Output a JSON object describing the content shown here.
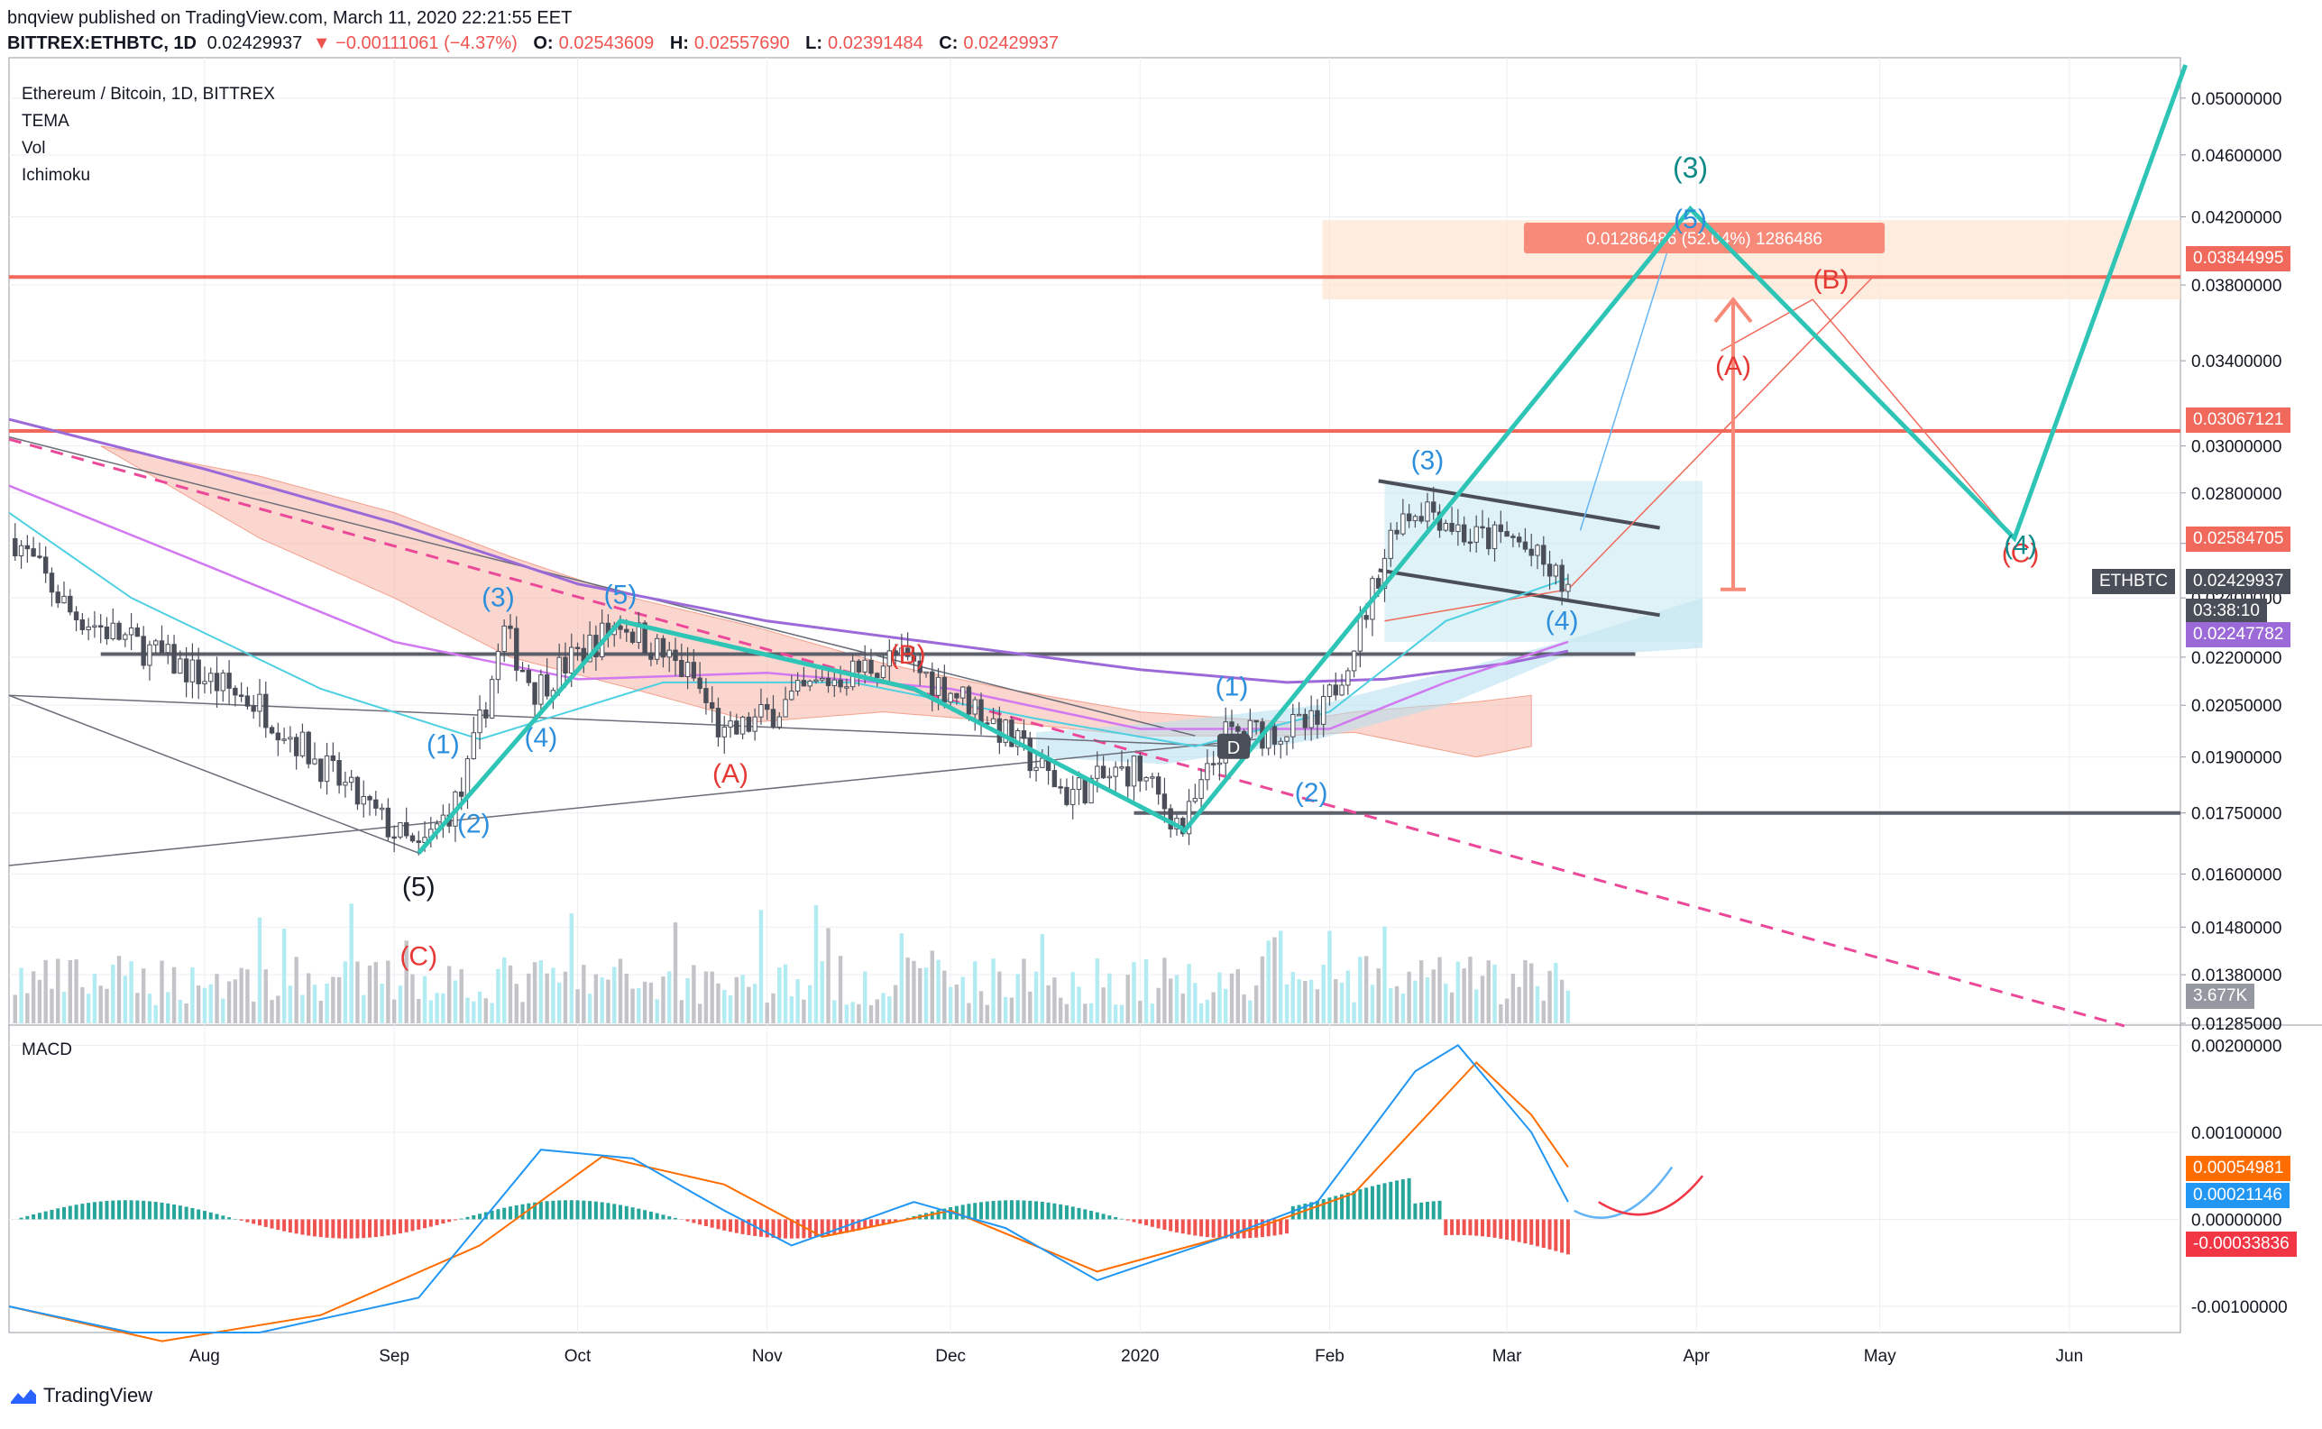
{
  "header": {
    "line1": "bnqview published on TradingView.com, March 11, 2020 22:21:55 EET",
    "symbol": "BITTREX:ETHBTC, 1D",
    "last": "0.02429937",
    "change": "−0.00111061 (−4.37%)",
    "o_label": "O:",
    "o_val": "0.02543609",
    "h_label": "H:",
    "h_val": "0.02557690",
    "l_label": "L:",
    "l_val": "0.02391484",
    "c_label": "C:",
    "c_val": "0.02429937"
  },
  "legend": {
    "title": "Ethereum / Bitcoin, 1D, BITTREX",
    "indicators": [
      "TEMA",
      "Vol",
      "Ichimoku"
    ],
    "macd": "MACD"
  },
  "footer": {
    "brand": "TradingView"
  },
  "colors": {
    "teal": "#2ec4b6",
    "red": "#f23645",
    "resistance": "#f0695a",
    "gray": "#5d606b",
    "cloud_red": "#f8b4a6",
    "cloud_blue": "#b2dfee",
    "macd_line": "#2196f3",
    "signal_line": "#ff6d00"
  },
  "chart_data": {
    "type": "candlestick",
    "title": "Ethereum / Bitcoin, 1D, BITTREX",
    "x_ticks": [
      "Aug",
      "Sep",
      "Oct",
      "Nov",
      "Dec",
      "2020",
      "Feb",
      "Mar",
      "Apr",
      "May",
      "Jun"
    ],
    "y_ticks": [
      "0.05000000",
      "0.04600000",
      "0.04200000",
      "0.03800000",
      "0.03400000",
      "0.03000000",
      "0.02800000",
      "0.02600000",
      "0.02400000",
      "0.02200000",
      "0.02050000",
      "0.01900000",
      "0.01750000",
      "0.01600000",
      "0.01480000",
      "0.01380000",
      "0.01285000"
    ],
    "scale": "log",
    "ylim": [
      0.01285,
      0.0525
    ],
    "price_tags": [
      {
        "value": "0.03844995",
        "color": "#f0695a"
      },
      {
        "value": "0.03067121",
        "color": "#f0695a"
      },
      {
        "value": "0.02584705",
        "color": "#f0695a"
      },
      {
        "value": "ETHBTC",
        "color": "#4a4e59"
      },
      {
        "value": "0.02429937",
        "color": "#4a4e59"
      },
      {
        "value": "03:38:10",
        "color": "#4a4e59"
      },
      {
        "value": "0.02247782",
        "color": "#9c6ad8"
      },
      {
        "value": "3.677K",
        "color": "#9598a1"
      }
    ],
    "resistance_levels": [
      0.03844995,
      0.03067121
    ],
    "support_levels": [
      0.0175,
      0.0221
    ],
    "measure_label": "0.01286486 (52.04%) 1286486",
    "projection_cyan": [
      [
        "2020-01-08",
        0.017
      ],
      [
        "2020-03-31",
        0.0425
      ],
      [
        "2020-05-23",
        0.0262
      ],
      [
        "2020-06-20",
        0.0525
      ]
    ],
    "wave_labels": {
      "blue": [
        "(1)",
        "(2)",
        "(3)",
        "(4)",
        "(5)",
        "(1)",
        "(2)",
        "(3)",
        "(4)",
        "(5)"
      ],
      "red": [
        "(A)",
        "(B)",
        "(C)",
        "(A)",
        "(B)",
        "(C)"
      ],
      "black": [
        "(5)"
      ],
      "teal": [
        "(3)",
        "(4)"
      ],
      "marker": "D"
    },
    "macd": {
      "title": "MACD",
      "y_ticks": [
        "0.00200000",
        "0.00100000",
        "0.00000000",
        "-0.00100000"
      ],
      "ylim": [
        -0.0013,
        0.0022
      ],
      "tags": [
        {
          "value": "0.00054981",
          "color": "#ff6d00"
        },
        {
          "value": "0.00021146",
          "color": "#2196f3"
        },
        {
          "value": "-0.00033836",
          "color": "#f23645"
        }
      ]
    }
  }
}
